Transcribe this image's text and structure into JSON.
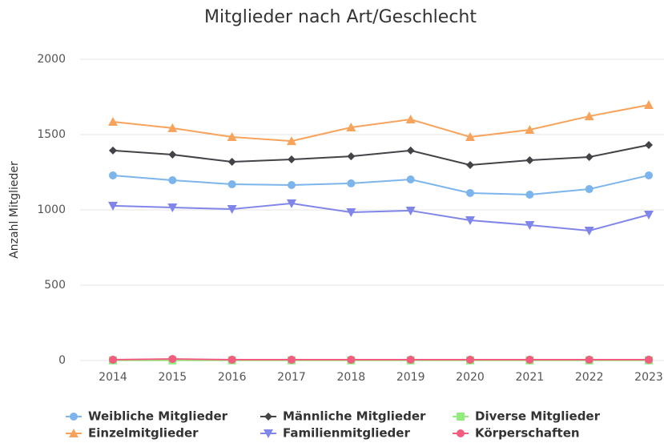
{
  "chart_data": {
    "type": "line",
    "title": "Mitglieder nach Art/Geschlecht",
    "y_label": "Anzahl Mitglieder",
    "categories": [
      "2014",
      "2015",
      "2016",
      "2017",
      "2018",
      "2019",
      "2020",
      "2021",
      "2022",
      "2023"
    ],
    "ylim": [
      0,
      2000
    ],
    "yticks": [
      0,
      500,
      1000,
      1500,
      2000
    ],
    "grid": true,
    "series": [
      {
        "name": "Weibliche Mitglieder",
        "color": "#7cb5ec",
        "marker": "circle",
        "values": [
          1229,
          1197,
          1170,
          1165,
          1176,
          1202,
          1112,
          1101,
          1138,
          1229
        ]
      },
      {
        "name": "Männliche Mitglieder",
        "color": "#434348",
        "marker": "diamond",
        "values": [
          1394,
          1367,
          1319,
          1335,
          1356,
          1394,
          1298,
          1330,
          1351,
          1431
        ]
      },
      {
        "name": "Diverse Mitglieder",
        "color": "#90ed7d",
        "marker": "square",
        "values": [
          1,
          1,
          1,
          1,
          1,
          1,
          1,
          1,
          1,
          1
        ]
      },
      {
        "name": "Einzelmitglieder",
        "color": "#f7a35c",
        "marker": "triangle",
        "values": [
          1585,
          1543,
          1484,
          1457,
          1548,
          1601,
          1484,
          1532,
          1622,
          1697
        ]
      },
      {
        "name": "Familienmitglieder",
        "color": "#8085e9",
        "marker": "triangle-down",
        "values": [
          1027,
          1016,
          1005,
          1043,
          984,
          995,
          931,
          899,
          862,
          968
        ]
      },
      {
        "name": "Körperschaften",
        "color": "#f15c80",
        "marker": "circle",
        "values": [
          5,
          10,
          5,
          5,
          5,
          5,
          5,
          5,
          5,
          5
        ]
      }
    ]
  }
}
